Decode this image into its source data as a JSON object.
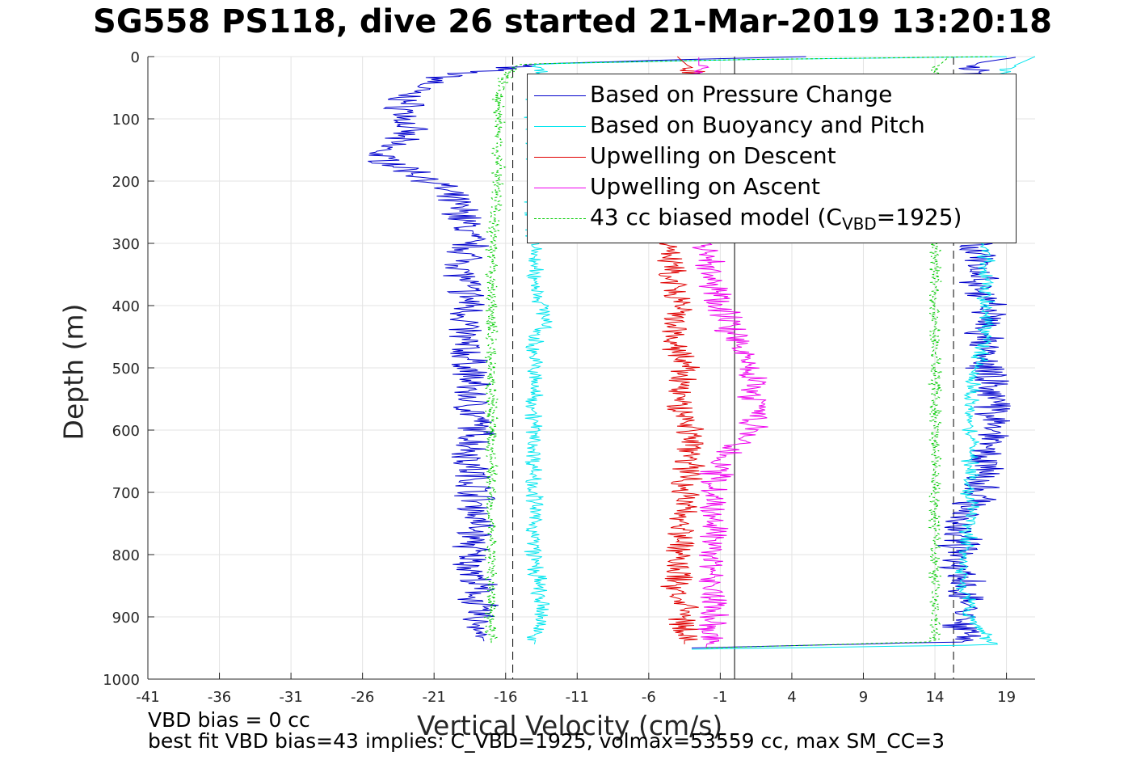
{
  "title": "SG558 PS118, dive 26 started 21-Mar-2019 13:20:18",
  "footer_lines": [
    "VBD bias = 0 cc",
    "best fit VBD bias=43 implies: C_VBD=1925, volmax=53559 cc, max SM_CC=3"
  ],
  "legend": {
    "entries": [
      {
        "label": "Based on Pressure Change",
        "color": "#0000cc",
        "style": "solid"
      },
      {
        "label": "Based on Buoyancy and Pitch",
        "color": "#00e5ee",
        "style": "solid"
      },
      {
        "label": "Upwelling on Descent",
        "color": "#e00000",
        "style": "solid"
      },
      {
        "label": "Upwelling on Ascent",
        "color": "#ee00ee",
        "style": "solid"
      },
      {
        "label_main": "43 cc biased model (C",
        "label_sub": "VBD",
        "label_end": "=1925)",
        "color": "#00cc00",
        "style": "dashed"
      }
    ]
  },
  "chart_data": {
    "type": "line",
    "title": "SG558 PS118, dive 26 started 21-Mar-2019 13:20:18",
    "xlabel": "Vertical Velocity (cm/s)",
    "ylabel": "Depth (m)",
    "xlim": [
      -41,
      21
    ],
    "ylim": [
      0,
      1000
    ],
    "y_reversed": true,
    "xticks": [
      -41,
      -36,
      -31,
      -26,
      -21,
      -16,
      -11,
      -6,
      -1,
      4,
      9,
      14,
      19
    ],
    "yticks": [
      0,
      100,
      200,
      300,
      400,
      500,
      600,
      700,
      800,
      900,
      1000
    ],
    "grid": true,
    "legend_position": "top-right",
    "vertical_reference_lines": [
      {
        "x": -15.5,
        "style": "dashed"
      },
      {
        "x": 0.0,
        "style": "solid"
      },
      {
        "x": 15.3,
        "style": "dashed"
      }
    ],
    "series": [
      {
        "name": "Based on Pressure Change",
        "color": "#0000cc",
        "descent": {
          "depth": [
            0,
            5,
            12,
            30,
            60,
            90,
            120,
            160,
            200,
            250,
            300,
            350,
            400,
            450,
            500,
            550,
            600,
            650,
            700,
            750,
            800,
            850,
            900,
            940
          ],
          "velocity": [
            5,
            -4,
            -14,
            -20,
            -23,
            -23,
            -23,
            -25,
            -21,
            -19,
            -18.5,
            -19,
            -18.5,
            -19,
            -18.5,
            -18.5,
            -18,
            -18.5,
            -18,
            -18,
            -18.5,
            -18,
            -18,
            -17.5
          ]
        },
        "ascent": {
          "depth": [
            950,
            940,
            900,
            850,
            800,
            750,
            700,
            650,
            600,
            550,
            500,
            450,
            400,
            350,
            300,
            250,
            200,
            150,
            100,
            60,
            30,
            10,
            0
          ],
          "velocity": [
            -3,
            16,
            16,
            16,
            15.5,
            16,
            17,
            17.5,
            18,
            18,
            17.5,
            17.5,
            17.5,
            17,
            17,
            17,
            16.5,
            16.5,
            16,
            16,
            16,
            17,
            20
          ]
        }
      },
      {
        "name": "Based on Buoyancy and Pitch",
        "color": "#00e5ee",
        "descent": {
          "depth": [
            0,
            5,
            12,
            30,
            60,
            100,
            200,
            300,
            350,
            400,
            420,
            450,
            500,
            600,
            700,
            800,
            900,
            945
          ],
          "velocity": [
            19,
            0,
            -14,
            -13.5,
            -14,
            -14,
            -14,
            -14,
            -14,
            -13.5,
            -13,
            -14,
            -14,
            -14,
            -14,
            -14,
            -13.5,
            -14
          ]
        },
        "ascent": {
          "depth": [
            952,
            945,
            900,
            850,
            800,
            750,
            700,
            650,
            600,
            550,
            500,
            450,
            400,
            350,
            300,
            250,
            200,
            150,
            100,
            50,
            20,
            0
          ],
          "velocity": [
            -3,
            18,
            16.5,
            16,
            16,
            16.5,
            16.5,
            16.5,
            16.5,
            16.5,
            17,
            17.5,
            17.5,
            17.5,
            17.5,
            17.5,
            18,
            18,
            18,
            18,
            19,
            21
          ]
        }
      },
      {
        "name": "Upwelling on Descent",
        "color": "#e00000",
        "descent": {
          "depth": [
            0,
            20,
            100,
            200,
            300,
            350,
            400,
            450,
            500,
            550,
            600,
            650,
            700,
            750,
            800,
            850,
            900,
            945
          ],
          "velocity": [
            -4,
            -3,
            -3,
            -3,
            -4.5,
            -4.5,
            -4,
            -4.5,
            -3.5,
            -4,
            -3,
            -3,
            -3.5,
            -3.5,
            -4,
            -4,
            -3.5,
            -3.5
          ]
        }
      },
      {
        "name": "Upwelling on Ascent",
        "color": "#ee00ee",
        "ascent": {
          "depth": [
            950,
            900,
            850,
            800,
            750,
            700,
            650,
            600,
            550,
            500,
            450,
            400,
            350,
            300,
            200,
            100,
            20,
            0
          ],
          "velocity": [
            -2,
            -1.5,
            -1.5,
            -1.5,
            -1.5,
            -1.5,
            -1,
            1.5,
            1.5,
            1,
            0,
            -1,
            -1.5,
            -2,
            -2.5,
            -2.5,
            -2.5,
            -2.5
          ]
        }
      },
      {
        "name": "43 cc biased model (C_VBD=1925)",
        "color": "#00cc00",
        "dashed": true,
        "descent": {
          "depth": [
            0,
            5,
            12,
            30,
            60,
            100,
            200,
            300,
            400,
            500,
            600,
            700,
            800,
            900,
            945
          ],
          "velocity": [
            18,
            0,
            -15,
            -16,
            -16.5,
            -16.5,
            -16.5,
            -17,
            -17,
            -17,
            -17,
            -17,
            -17,
            -17,
            -17
          ]
        },
        "ascent": {
          "depth": [
            950,
            940,
            900,
            800,
            700,
            600,
            500,
            400,
            300,
            200,
            100,
            50,
            20,
            0
          ],
          "velocity": [
            -2,
            14,
            14,
            14,
            14,
            14,
            14,
            14,
            14,
            14,
            14,
            14,
            14,
            15
          ]
        }
      }
    ]
  }
}
